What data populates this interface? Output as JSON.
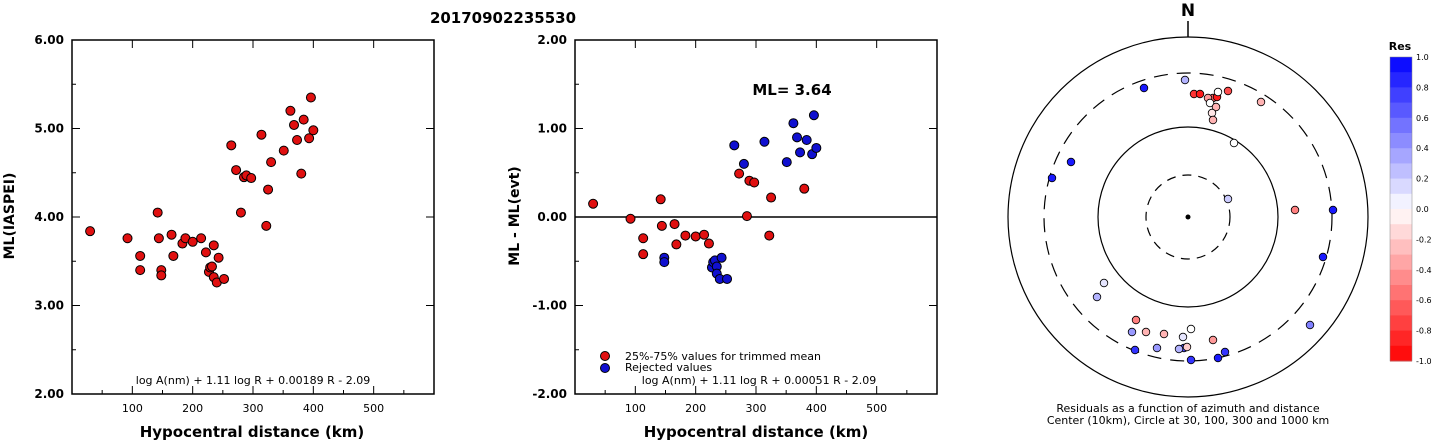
{
  "title": "20170902235530",
  "chart_data": [
    {
      "type": "scatter",
      "xlabel": "Hypocentral distance (km)",
      "ylabel": "ML(IASPEI)",
      "xlim": [
        0,
        600
      ],
      "ylim": [
        2.0,
        6.0
      ],
      "xticks": [
        "100",
        "200",
        "300",
        "400",
        "500"
      ],
      "yticks": [
        "2.00",
        "3.00",
        "4.00",
        "5.00",
        "6.00"
      ],
      "formula": "log A(nm) + 1.11 log R + 0.00189 R - 2.09",
      "series": [
        {
          "color": "#e01010",
          "points": [
            [
              30,
              3.84
            ],
            [
              92,
              3.76
            ],
            [
              113,
              3.56
            ],
            [
              113,
              3.4
            ],
            [
              142,
              4.05
            ],
            [
              144,
              3.76
            ],
            [
              148,
              3.4
            ],
            [
              148,
              3.34
            ],
            [
              165,
              3.8
            ],
            [
              168,
              3.56
            ],
            [
              183,
              3.7
            ],
            [
              188,
              3.76
            ],
            [
              200,
              3.72
            ],
            [
              214,
              3.76
            ],
            [
              222,
              3.6
            ],
            [
              227,
              3.38
            ],
            [
              229,
              3.43
            ],
            [
              232,
              3.44
            ],
            [
              235,
              3.68
            ],
            [
              235,
              3.32
            ],
            [
              240,
              3.26
            ],
            [
              243,
              3.54
            ],
            [
              252,
              3.3
            ],
            [
              264,
              4.81
            ],
            [
              272,
              4.53
            ],
            [
              280,
              4.05
            ],
            [
              285,
              4.45
            ],
            [
              289,
              4.47
            ],
            [
              297,
              4.44
            ],
            [
              314,
              4.93
            ],
            [
              322,
              3.9
            ],
            [
              325,
              4.31
            ],
            [
              330,
              4.62
            ],
            [
              351,
              4.75
            ],
            [
              362,
              5.2
            ],
            [
              368,
              5.04
            ],
            [
              373,
              4.87
            ],
            [
              380,
              4.49
            ],
            [
              384,
              5.1
            ],
            [
              393,
              4.89
            ],
            [
              396,
              5.35
            ],
            [
              400,
              4.98
            ]
          ]
        }
      ]
    },
    {
      "type": "scatter",
      "xlabel": "Hypocentral distance (km)",
      "ylabel": "ML - ML(evt)",
      "xlim": [
        0,
        600
      ],
      "ylim": [
        -2.0,
        2.0
      ],
      "xticks": [
        "100",
        "200",
        "300",
        "400",
        "500"
      ],
      "yticks": [
        "-2.00",
        "-1.00",
        "0.00",
        "1.00",
        "2.00"
      ],
      "annotation": "ML= 3.64",
      "formula": "log A(nm) + 1.11 log R + 0.00051 R - 2.09",
      "series": [
        {
          "name": "25%-75% values for trimmed mean",
          "color": "#e01010",
          "points": [
            [
              30,
              0.15
            ],
            [
              92,
              -0.02
            ],
            [
              113,
              -0.24
            ],
            [
              113,
              -0.42
            ],
            [
              142,
              0.2
            ],
            [
              144,
              -0.1
            ],
            [
              165,
              -0.08
            ],
            [
              168,
              -0.31
            ],
            [
              183,
              -0.21
            ],
            [
              200,
              -0.22
            ],
            [
              214,
              -0.2
            ],
            [
              222,
              -0.3
            ],
            [
              272,
              0.49
            ],
            [
              285,
              0.01
            ],
            [
              289,
              0.41
            ],
            [
              297,
              0.39
            ],
            [
              322,
              -0.21
            ],
            [
              325,
              0.22
            ],
            [
              380,
              0.32
            ]
          ]
        },
        {
          "name": "Rejected values",
          "color": "#1010d0",
          "points": [
            [
              148,
              -0.46
            ],
            [
              148,
              -0.51
            ],
            [
              227,
              -0.57
            ],
            [
              229,
              -0.51
            ],
            [
              232,
              -0.49
            ],
            [
              235,
              -0.56
            ],
            [
              235,
              -0.64
            ],
            [
              240,
              -0.7
            ],
            [
              243,
              -0.46
            ],
            [
              252,
              -0.7
            ],
            [
              264,
              0.81
            ],
            [
              280,
              0.6
            ],
            [
              314,
              0.85
            ],
            [
              351,
              0.62
            ],
            [
              362,
              1.06
            ],
            [
              368,
              0.9
            ],
            [
              373,
              0.73
            ],
            [
              384,
              0.87
            ],
            [
              393,
              0.71
            ],
            [
              396,
              1.15
            ],
            [
              400,
              0.78
            ]
          ]
        }
      ]
    },
    {
      "type": "scatter",
      "subtype": "polar-residuals",
      "north_label": "N",
      "caption_line1": "Residuals as a function of azimuth and distance",
      "caption_line2": "Center (10km), Circle at 30, 100, 300 and 1000 km",
      "colorbar_title": "Res",
      "colorbar_ticks": [
        "1.0",
        "0.8",
        "0.6",
        "0.4",
        "0.2",
        "0.0",
        "-0.2",
        "-0.4",
        "-0.6",
        "-0.8",
        "-1.0"
      ],
      "points_res": [
        [
          -44,
          148,
          0.9
        ],
        [
          -3,
          148,
          0.3
        ],
        [
          4,
          140,
          -0.8
        ],
        [
          7,
          140,
          -0.9
        ],
        [
          9,
          135,
          -0.7
        ],
        [
          12,
          133,
          -0.8
        ],
        [
          14,
          131,
          -0.4
        ],
        [
          16,
          128,
          -0.1
        ],
        [
          22,
          135,
          0.0
        ],
        [
          27,
          133,
          -0.9
        ],
        [
          33,
          129,
          -0.3
        ],
        [
          37,
          123,
          -0.6
        ],
        [
          41,
          123,
          -0.9
        ],
        [
          44,
          113,
          -0.3
        ],
        [
          47,
          101,
          -0.1
        ],
        [
          34,
          88,
          0.0
        ],
        [
          39,
          17,
          0.2
        ],
        [
          101,
          143,
          -0.5
        ],
        [
          144,
          143,
          0.8
        ],
        [
          101,
          143,
          -0.5
        ],
        [
          0,
          0,
          0
        ]
      ]
    }
  ]
}
